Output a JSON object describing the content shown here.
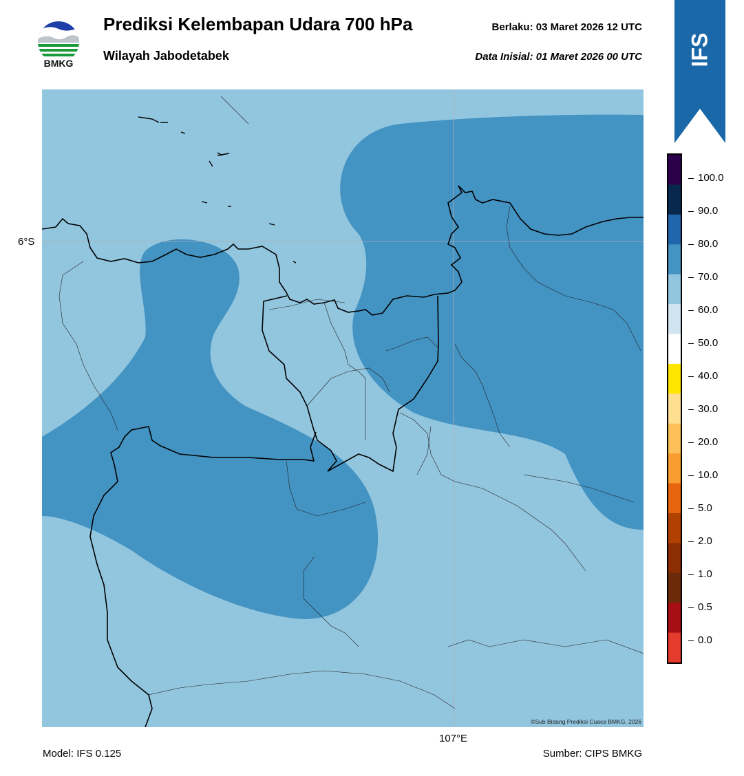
{
  "header": {
    "logo_text": "BMKG",
    "title": "Prediksi Kelembapan Udara 700 hPa",
    "region": "Wilayah Jabodetabek",
    "valid_label": "Berlaku:",
    "valid_value": "03 Maret 2026 12 UTC",
    "init_label": "Data Inisial:",
    "init_value": "01 Maret 2026 00 UTC"
  },
  "map": {
    "lat_label": "6°S",
    "lon_label": "107°E",
    "credit": "©Sub Bidang Prediksi Cuaca BMKG, 2026",
    "colors": {
      "band_60_70": "#92c5de",
      "band_70_80": "#4393c3",
      "coast": "#000000",
      "admin": "#222222"
    }
  },
  "colorbar": {
    "labels": [
      "100.0",
      "90.0",
      "80.0",
      "70.0",
      "60.0",
      "50.0",
      "40.0",
      "30.0",
      "20.0",
      "10.0",
      "5.0",
      "2.0",
      "1.0",
      "0.5",
      "0.0"
    ],
    "colors_top_to_bottom": [
      "#2d004b",
      "#08284d",
      "#2166ac",
      "#4393c3",
      "#92c5de",
      "#d1e5f0",
      "#ffffff",
      "#ffe600",
      "#fee090",
      "#fdc05a",
      "#f99d30",
      "#e6650e",
      "#b04100",
      "#8c2d04",
      "#6b2a0a",
      "#a50f15",
      "#e43b2c"
    ]
  },
  "badge": {
    "text": "IFS",
    "color": "#1a68a8"
  },
  "footer": {
    "model": "Model: IFS 0.125",
    "source": "Sumber: CIPS BMKG"
  }
}
